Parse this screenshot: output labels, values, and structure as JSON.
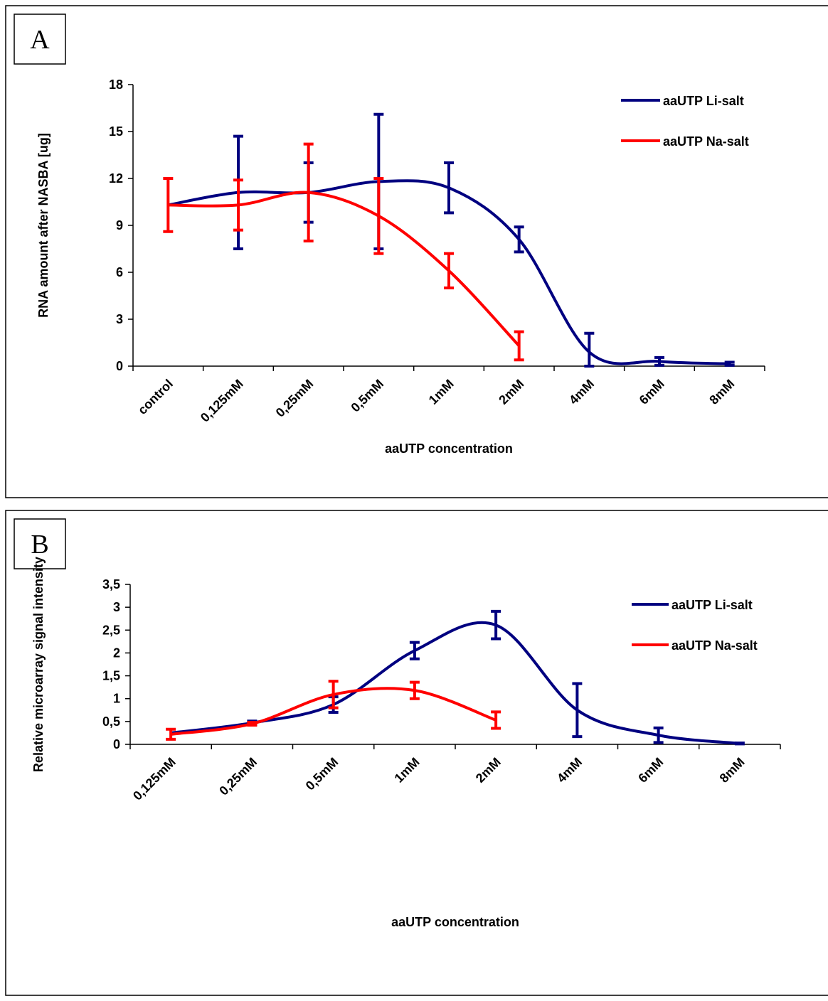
{
  "chart_data": [
    {
      "type": "line",
      "label": "A",
      "smooth": true,
      "x_label": "aaUTP concentration",
      "y_label": "RNA amount after NASBA [ug]",
      "categories": [
        "control",
        "0,125mM",
        "0,25mM",
        "0,5mM",
        "1mM",
        "2mM",
        "4mM",
        "6mM",
        "8mM"
      ],
      "series": [
        {
          "name": "aaUTP Li-salt",
          "color": "#000080",
          "values": [
            10.3,
            11.1,
            11.1,
            11.8,
            11.4,
            8.1,
            0.9,
            0.3,
            0.15
          ],
          "errors": [
            null,
            3.6,
            1.9,
            4.3,
            1.6,
            0.8,
            1.2,
            0.25,
            0.1
          ]
        },
        {
          "name": "aaUTP Na-salt",
          "color": "#ff0000",
          "values": [
            10.3,
            10.3,
            11.1,
            9.6,
            6.1,
            1.3,
            null,
            null,
            null
          ],
          "errors": [
            1.7,
            1.6,
            3.1,
            2.4,
            1.1,
            0.9,
            null,
            null,
            null
          ]
        }
      ],
      "ylim": [
        0,
        18
      ],
      "yticks": [
        0,
        3,
        6,
        9,
        12,
        15,
        18
      ],
      "legend": "upper right"
    },
    {
      "type": "line",
      "label": "B",
      "smooth": true,
      "x_label": "aaUTP concentration",
      "y_label": "Relative microarray signal intensity",
      "categories": [
        "0,125mM",
        "0,25mM",
        "0,5mM",
        "1mM",
        "2mM",
        "4mM",
        "6mM",
        "8mM"
      ],
      "series": [
        {
          "name": "aaUTP Li-salt",
          "color": "#000080",
          "values": [
            0.25,
            0.47,
            0.87,
            2.05,
            2.61,
            0.75,
            0.2,
            0.02
          ],
          "errors": [
            null,
            0.04,
            0.17,
            0.18,
            0.3,
            0.58,
            0.16,
            0.01
          ]
        },
        {
          "name": "aaUTP Na-salt",
          "color": "#ff0000",
          "values": [
            0.22,
            0.45,
            1.09,
            1.18,
            0.53,
            null,
            null,
            null
          ],
          "errors": [
            0.11,
            0.03,
            0.29,
            0.18,
            0.18,
            null,
            null,
            null
          ]
        }
      ],
      "ylim": [
        0,
        3.5
      ],
      "yticks": [
        0,
        {
          "value": 0.5,
          "label": "0,5"
        },
        1,
        {
          "value": 1.5,
          "label": "1,5"
        },
        2,
        {
          "value": 2.5,
          "label": "2,5"
        },
        3,
        {
          "value": 3.5,
          "label": "3,5"
        }
      ],
      "legend": "upper right"
    }
  ]
}
